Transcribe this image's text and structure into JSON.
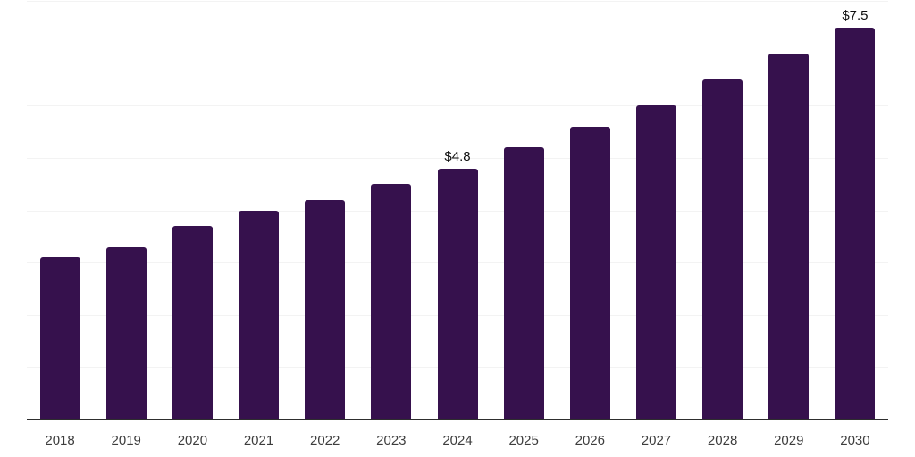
{
  "chart_data": {
    "type": "bar",
    "categories": [
      "2018",
      "2019",
      "2020",
      "2021",
      "2022",
      "2023",
      "2024",
      "2025",
      "2026",
      "2027",
      "2028",
      "2029",
      "2030"
    ],
    "values": [
      3.1,
      3.3,
      3.7,
      4.0,
      4.2,
      4.5,
      4.8,
      5.2,
      5.6,
      6.0,
      6.5,
      7.0,
      7.5
    ],
    "labels": [
      "",
      "",
      "",
      "",
      "",
      "",
      "$4.8",
      "",
      "",
      "",
      "",
      "",
      "$7.5"
    ],
    "title": "",
    "xlabel": "",
    "ylabel": "",
    "ylim": [
      0,
      8
    ],
    "gridline_step": 1,
    "grid": true,
    "legend": false,
    "colors": {
      "bar": "#36114D",
      "background": "#ffffff",
      "gridline": "#f3f3f3",
      "axis": "#2e2e2e",
      "tick_label": "#3d3d3d",
      "data_label": "#0f0f0f"
    }
  }
}
